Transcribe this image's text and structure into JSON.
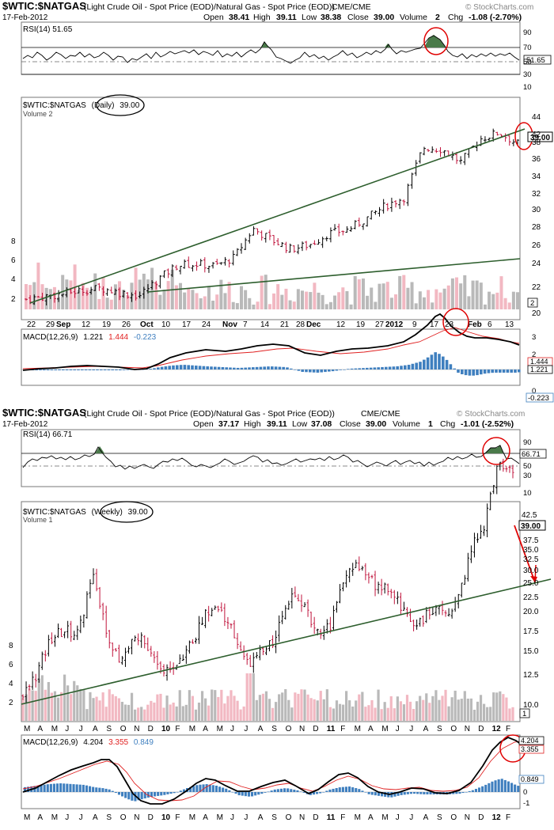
{
  "colors": {
    "up": "#000000",
    "down": "#c0143c",
    "trend": "#2d5e2d",
    "rsi_fill": "#4a7a4a",
    "volume_up": "#b9b9b9",
    "volume_down": "#f2b8c2",
    "macd": "#000000",
    "signal": "#e02020",
    "hist": "#3f7fbf",
    "annotation": "#e00000"
  },
  "charts": [
    {
      "title": "$WTIC:$NATGAS",
      "description": "(Light Crude Oil - Spot Price (EOD)/Natural Gas - Spot Price (EOD))",
      "exchange": "CME/CME",
      "date": "17-Feb-2012",
      "watermark": "© StockCharts.com",
      "ohlc": {
        "open_label": "Open",
        "open": "38.41",
        "high_label": "High",
        "high": "39.11",
        "low_label": "Low",
        "low": "38.38",
        "close_label": "Close",
        "close": "39.00",
        "volume_label": "Volume",
        "volume": "2",
        "chg_label": "Chg",
        "chg": "-1.08 (-2.70%)"
      },
      "rsi_label": "RSI(14) 51.65",
      "rsi_tag": "51.65",
      "rsi_ticks": [
        "90",
        "70",
        "50",
        "30",
        "10"
      ],
      "price_label_pre": "$WTIC:$NATGAS",
      "price_label_circled": "(Daily)",
      "price_label_post": "39.00",
      "volume_label": "Volume 2",
      "price_tag": "39.00",
      "price_ticks": [
        "44",
        "42",
        "40",
        "38",
        "36",
        "34",
        "32",
        "30",
        "28",
        "26",
        "24",
        "22",
        "20"
      ],
      "volume_ticks": [
        "8",
        "6",
        "4",
        "2"
      ],
      "volume_tag": "2",
      "date_ticks": [
        "22",
        "29",
        "Sep",
        "12",
        "19",
        "26",
        "Oct",
        "10",
        "17",
        "24",
        "Nov",
        "7",
        "14",
        "21",
        "28",
        "Dec",
        "12",
        "19",
        "27",
        "2012",
        "9",
        "17",
        "23",
        "Feb",
        "6",
        "13"
      ],
      "macd_label": "MACD(12,26,9)",
      "macd_v1": "1.221",
      "macd_v2": "1.444",
      "macd_v3": "-0.223",
      "macd_ticks": [
        "3",
        "2",
        "1",
        "0"
      ],
      "macd_tags": [
        "1.444",
        "1.221",
        "-0.223"
      ]
    },
    {
      "title": "$WTIC:$NATGAS",
      "description": "(Light Crude Oil - Spot Price (EOD)/Natural Gas - Spot Price (EOD))",
      "exchange": "CME/CME",
      "date": "17-Feb-2012",
      "watermark": "© StockCharts.com",
      "ohlc": {
        "open_label": "Open",
        "open": "37.17",
        "high_label": "High",
        "high": "39.11",
        "low_label": "Low",
        "low": "37.08",
        "close_label": "Close",
        "close": "39.00",
        "volume_label": "Volume",
        "volume": "1",
        "chg_label": "Chg",
        "chg": "-1.01 (-2.52%)"
      },
      "rsi_label": "RSI(14) 66.71",
      "rsi_tag": "66.71",
      "rsi_ticks": [
        "90",
        "70",
        "50",
        "30",
        "10"
      ],
      "price_label_pre": "$WTIC:$NATGAS",
      "price_label_circled": "(Weekly)",
      "price_label_post": "39.00",
      "volume_label": "Volume 1",
      "price_tag": "39.00",
      "price_ticks": [
        "42.5",
        "40.0",
        "37.5",
        "35.0",
        "32.5",
        "30.0",
        "27.5",
        "25.0",
        "22.5",
        "20.0",
        "17.5",
        "15.0",
        "12.5",
        "10.0"
      ],
      "volume_ticks": [
        "8",
        "6",
        "4",
        "2"
      ],
      "volume_tag": "1",
      "date_ticks": [
        "M",
        "A",
        "M",
        "J",
        "J",
        "A",
        "S",
        "O",
        "N",
        "D",
        "10",
        "F",
        "M",
        "A",
        "M",
        "J",
        "J",
        "A",
        "S",
        "O",
        "N",
        "D",
        "11",
        "F",
        "M",
        "A",
        "M",
        "J",
        "J",
        "A",
        "S",
        "O",
        "N",
        "D",
        "12",
        "F"
      ],
      "macd_label": "MACD(12,26,9)",
      "macd_v1": "4.204",
      "macd_v2": "3.355",
      "macd_v3": "0.849",
      "macd_ticks": [
        "4",
        "3",
        "2",
        "1",
        "0",
        "-1"
      ],
      "macd_tags": [
        "4.204",
        "3.355",
        "0.849"
      ]
    }
  ],
  "chart_data": [
    {
      "type": "bar",
      "title": "$WTIC:$NATGAS (Daily)",
      "xlabel": "",
      "ylabel": "",
      "x": [
        "Aug 22",
        "Aug 29",
        "Sep",
        "Sep 12",
        "Sep 19",
        "Sep 26",
        "Oct",
        "Oct 10",
        "Oct 17",
        "Oct 24",
        "Nov",
        "Nov 7",
        "Nov 14",
        "Nov 21",
        "Nov 28",
        "Dec",
        "Dec 12",
        "Dec 19",
        "Dec 27",
        "2012",
        "Jan 9",
        "Jan 17",
        "Jan 23",
        "Feb",
        "Feb 6",
        "Feb 13",
        "Feb 17"
      ],
      "close": [
        22.2,
        22.5,
        22.8,
        23.2,
        23.4,
        22.9,
        22.6,
        24.4,
        25.9,
        26.0,
        25.8,
        26.7,
        29.8,
        28.6,
        27.6,
        28.1,
        29.3,
        29.7,
        30.9,
        32.3,
        33.2,
        38.6,
        38.4,
        37.0,
        39.5,
        40.2,
        39.0
      ],
      "trendlines": [
        {
          "name": "steep",
          "from": [
            "Aug 22",
            21.6
          ],
          "to": [
            "Feb 17",
            40.5
          ]
        },
        {
          "name": "shallow",
          "from": [
            "Oct",
            22.0
          ],
          "to": [
            "Feb 17",
            24.8
          ]
        }
      ],
      "ylim": [
        20,
        44
      ],
      "volume_ylim": [
        0,
        8
      ],
      "rsi_last": 51.65,
      "macd": {
        "macd": 1.221,
        "signal": 1.444,
        "hist": -0.223,
        "ylim": [
          -0.3,
          3
        ]
      }
    },
    {
      "type": "bar",
      "title": "$WTIC:$NATGAS (Weekly)",
      "xlabel": "",
      "ylabel": "",
      "x": [
        "Mar 2009",
        "Apr",
        "May",
        "Jun",
        "Jul",
        "Aug",
        "Sep",
        "Oct",
        "Nov",
        "Dec",
        "2010",
        "Feb",
        "Mar",
        "Apr",
        "May",
        "Jun",
        "Jul",
        "Aug",
        "Sep",
        "Oct",
        "Nov",
        "Dec",
        "2011",
        "Feb",
        "Mar",
        "Apr",
        "May",
        "Jun",
        "Jul",
        "Aug",
        "Sep",
        "Oct",
        "Nov",
        "Dec",
        "2012",
        "Feb"
      ],
      "close": [
        11.0,
        14.0,
        18.5,
        19.5,
        19.0,
        27.5,
        18.5,
        15.5,
        18.5,
        17.5,
        13.5,
        15.5,
        17.5,
        21.5,
        22.0,
        19.5,
        15.0,
        16.5,
        18.5,
        23.5,
        22.5,
        19.5,
        20.0,
        26.5,
        27.5,
        25.5,
        25.0,
        22.5,
        20.5,
        21.5,
        22.0,
        22.5,
        30.0,
        33.0,
        41.5,
        39.0
      ],
      "trendlines": [
        {
          "name": "support",
          "from": [
            "Mar 2009",
            10.0
          ],
          "to": [
            "Feb",
            25.0
          ]
        }
      ],
      "ylim": [
        8,
        43
      ],
      "volume_ylim": [
        0,
        8
      ],
      "rsi_last": 66.71,
      "macd": {
        "macd": 4.204,
        "signal": 3.355,
        "hist": 0.849,
        "ylim": [
          -1.3,
          4.3
        ]
      }
    }
  ]
}
